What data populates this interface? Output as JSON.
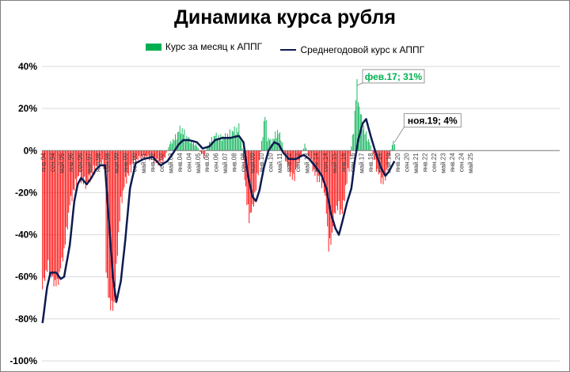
{
  "chart_data": {
    "type": "bar",
    "title": "Динамика курса рубля",
    "legend": {
      "placement": "top"
    },
    "grid": true,
    "ylim": [
      -100,
      40
    ],
    "y_ticks": [
      "40%",
      "20%",
      "0%",
      "-20%",
      "-40%",
      "-60%",
      "-80%",
      "-100%"
    ],
    "x_tick_labels": [
      "янв.94",
      "сен.94",
      "май.95",
      "янв.96",
      "сен.96",
      "май.97",
      "янв.98",
      "сен.98",
      "май.99",
      "янв.00",
      "сен.00",
      "май.01",
      "янв.02",
      "сен.02",
      "май.03",
      "янв.04",
      "сен.04",
      "май.05",
      "янв.06",
      "сен.06",
      "май.07",
      "янв.08",
      "сен.08",
      "май.09",
      "янв.10",
      "сен.10",
      "май.11",
      "янв.12",
      "сен.12",
      "май.13",
      "янв.14",
      "сен.14",
      "май.15",
      "янв.16",
      "сен.16",
      "май.17",
      "янв.18",
      "сен.18",
      "май.19",
      "янв.20",
      "сен.20",
      "май.21",
      "янв.22",
      "сен.22",
      "май.23",
      "янв.24",
      "сен.24",
      "май.25"
    ],
    "x_start": "1994-01",
    "series": [
      {
        "name": "Курс за месяц к АППГ",
        "type": "bar",
        "color_positive": "#00b050",
        "color_negative": "#ff0000",
        "anchors": [
          [
            "1994-01",
            -66
          ],
          [
            "1994-03",
            -60
          ],
          [
            "1994-06",
            -55
          ],
          [
            "1994-10",
            -62
          ],
          [
            "1995-02",
            -64
          ],
          [
            "1995-05",
            -56
          ],
          [
            "1995-08",
            -48
          ],
          [
            "1995-11",
            -35
          ],
          [
            "1996-01",
            -26
          ],
          [
            "1996-05",
            -18
          ],
          [
            "1996-09",
            -12
          ],
          [
            "1997-01",
            -15
          ],
          [
            "1997-04",
            -16
          ],
          [
            "1997-08",
            -12
          ],
          [
            "1997-12",
            -8
          ],
          [
            "1998-03",
            -7
          ],
          [
            "1998-06",
            -6
          ],
          [
            "1998-08",
            -8
          ],
          [
            "1998-09",
            -58
          ],
          [
            "1998-11",
            -68
          ],
          [
            "1999-01",
            -75
          ],
          [
            "1999-04",
            -73
          ],
          [
            "1999-07",
            -48
          ],
          [
            "1999-10",
            -25
          ],
          [
            "2000-02",
            -15
          ],
          [
            "2000-08",
            -7
          ],
          [
            "2001-03",
            -3
          ],
          [
            "2001-09",
            -3
          ],
          [
            "2002-03",
            -5
          ],
          [
            "2002-09",
            -6
          ],
          [
            "2003-01",
            -3
          ],
          [
            "2003-05",
            3
          ],
          [
            "2003-10",
            6
          ],
          [
            "2004-01",
            9
          ],
          [
            "2004-03",
            10
          ],
          [
            "2004-07",
            7
          ],
          [
            "2004-12",
            4
          ],
          [
            "2005-04",
            3
          ],
          [
            "2005-07",
            0
          ],
          [
            "2005-11",
            -3
          ],
          [
            "2006-03",
            3
          ],
          [
            "2006-09",
            7
          ],
          [
            "2007-02",
            6
          ],
          [
            "2007-08",
            7
          ],
          [
            "2008-01",
            9
          ],
          [
            "2008-06",
            10
          ],
          [
            "2008-09",
            1
          ],
          [
            "2008-11",
            -12
          ],
          [
            "2009-01",
            -25
          ],
          [
            "2009-03",
            -32
          ],
          [
            "2009-06",
            -28
          ],
          [
            "2009-09",
            -18
          ],
          [
            "2009-12",
            -5
          ],
          [
            "2010-03",
            8
          ],
          [
            "2010-05",
            17
          ],
          [
            "2010-07",
            6
          ],
          [
            "2010-11",
            4
          ],
          [
            "2011-04",
            9
          ],
          [
            "2011-07",
            6
          ],
          [
            "2011-10",
            -2
          ],
          [
            "2012-01",
            -8
          ],
          [
            "2012-06",
            -14
          ],
          [
            "2012-10",
            -6
          ],
          [
            "2013-01",
            -2
          ],
          [
            "2013-04",
            3
          ],
          [
            "2013-07",
            -2
          ],
          [
            "2013-10",
            -6
          ],
          [
            "2014-01",
            -12
          ],
          [
            "2014-05",
            -14
          ],
          [
            "2014-08",
            -16
          ],
          [
            "2014-11",
            -28
          ],
          [
            "2015-01",
            -47
          ],
          [
            "2015-04",
            -40
          ],
          [
            "2015-07",
            -28
          ],
          [
            "2015-10",
            -27
          ],
          [
            "2016-01",
            -30
          ],
          [
            "2016-04",
            -18
          ],
          [
            "2016-07",
            -8
          ],
          [
            "2016-09",
            2
          ],
          [
            "2016-11",
            10
          ],
          [
            "2017-01",
            25
          ],
          [
            "2017-02",
            31
          ],
          [
            "2017-04",
            20
          ],
          [
            "2017-07",
            12
          ],
          [
            "2017-10",
            7
          ],
          [
            "2018-01",
            4
          ],
          [
            "2018-04",
            -2
          ],
          [
            "2018-07",
            -8
          ],
          [
            "2018-10",
            -13
          ],
          [
            "2019-01",
            -15
          ],
          [
            "2019-04",
            -10
          ],
          [
            "2019-07",
            -2
          ],
          [
            "2019-09",
            3
          ],
          [
            "2019-11",
            4
          ]
        ]
      },
      {
        "name": "Среднегодовой курс к АППГ",
        "type": "line",
        "color": "#0d1b4f",
        "anchors": [
          [
            "1994-01",
            -82
          ],
          [
            "1994-05",
            -65
          ],
          [
            "1994-08",
            -58
          ],
          [
            "1995-01",
            -58
          ],
          [
            "1995-05",
            -61
          ],
          [
            "1995-08",
            -60
          ],
          [
            "1996-01",
            -45
          ],
          [
            "1996-05",
            -24
          ],
          [
            "1996-08",
            -16
          ],
          [
            "1996-11",
            -13
          ],
          [
            "1997-04",
            -16
          ],
          [
            "1997-08",
            -13
          ],
          [
            "1997-12",
            -9
          ],
          [
            "1998-04",
            -7
          ],
          [
            "1998-08",
            -7
          ],
          [
            "1998-11",
            -30
          ],
          [
            "1999-03",
            -60
          ],
          [
            "1999-06",
            -72
          ],
          [
            "1999-10",
            -62
          ],
          [
            "2000-02",
            -42
          ],
          [
            "2000-06",
            -18
          ],
          [
            "2000-11",
            -6
          ],
          [
            "2001-06",
            -4
          ],
          [
            "2002-02",
            -3
          ],
          [
            "2002-09",
            -7
          ],
          [
            "2003-03",
            -5
          ],
          [
            "2003-07",
            -2
          ],
          [
            "2004-01",
            3
          ],
          [
            "2004-05",
            5
          ],
          [
            "2004-10",
            5
          ],
          [
            "2005-05",
            4
          ],
          [
            "2005-10",
            1
          ],
          [
            "2006-04",
            2
          ],
          [
            "2006-09",
            5
          ],
          [
            "2007-03",
            6
          ],
          [
            "2007-10",
            6
          ],
          [
            "2008-06",
            7
          ],
          [
            "2008-10",
            4
          ],
          [
            "2009-02",
            -12
          ],
          [
            "2009-06",
            -22
          ],
          [
            "2009-09",
            -24
          ],
          [
            "2009-12",
            -19
          ],
          [
            "2010-04",
            -8
          ],
          [
            "2010-08",
            0
          ],
          [
            "2011-01",
            4
          ],
          [
            "2011-05",
            3
          ],
          [
            "2011-09",
            -1
          ],
          [
            "2012-02",
            -4
          ],
          [
            "2012-08",
            -4
          ],
          [
            "2013-03",
            -2
          ],
          [
            "2013-08",
            -4
          ],
          [
            "2014-02",
            -8
          ],
          [
            "2014-07",
            -12
          ],
          [
            "2014-11",
            -18
          ],
          [
            "2015-03",
            -30
          ],
          [
            "2015-07",
            -37
          ],
          [
            "2015-10",
            -40
          ],
          [
            "2016-01",
            -34
          ],
          [
            "2016-05",
            -25
          ],
          [
            "2016-09",
            -18
          ],
          [
            "2016-12",
            -5
          ],
          [
            "2017-03",
            5
          ],
          [
            "2017-07",
            13
          ],
          [
            "2017-10",
            15
          ],
          [
            "2018-02",
            7
          ],
          [
            "2018-07",
            -2
          ],
          [
            "2018-11",
            -8
          ],
          [
            "2019-03",
            -12
          ],
          [
            "2019-06",
            -10
          ],
          [
            "2019-11",
            -5
          ]
        ]
      }
    ],
    "annotations": [
      {
        "text": "фев.17; 31%",
        "date": "2017-02",
        "value": 31,
        "color": "#00b050"
      },
      {
        "text": "ноя.19; 4%",
        "date": "2019-11",
        "value": 4,
        "color": "#000000"
      }
    ]
  }
}
